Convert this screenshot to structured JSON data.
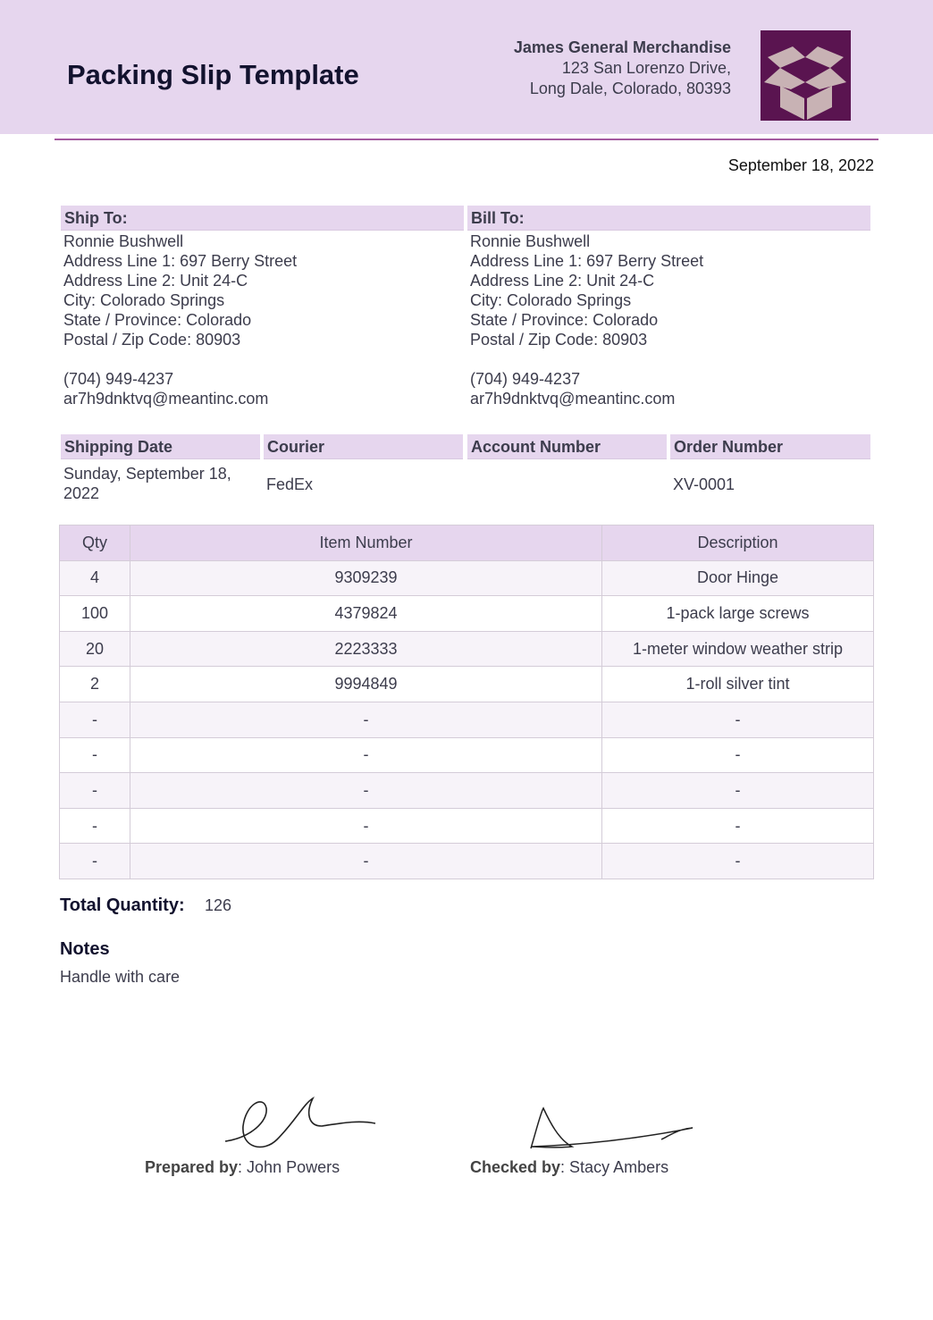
{
  "header": {
    "title": "Packing Slip Template",
    "company": "James General Merchandise",
    "address1": "123 San Lorenzo Drive,",
    "address2": "Long Dale, Colorado, 80393",
    "logo_icon": "open-box-icon",
    "colors": {
      "band": "#e6d6ee",
      "logo": "#5a1450"
    }
  },
  "date": "September 18, 2022",
  "ship_to": {
    "heading": "Ship To:",
    "lines": [
      "Ronnie Bushwell",
      "Address Line 1: 697 Berry Street",
      "Address Line 2: Unit 24-C",
      "City: Colorado Springs",
      "State / Province: Colorado",
      "Postal / Zip Code: 80903"
    ],
    "phone": "(704) 949-4237",
    "email": "ar7h9dnktvq@meantinc.com"
  },
  "bill_to": {
    "heading": "Bill To:",
    "lines": [
      "Ronnie Bushwell",
      "Address Line 1: 697 Berry Street",
      "Address Line 2: Unit 24-C",
      "City: Colorado Springs",
      "State / Province: Colorado",
      "Postal / Zip Code: 80903"
    ],
    "phone": "(704) 949-4237",
    "email": "ar7h9dnktvq@meantinc.com"
  },
  "shipping": {
    "headers": [
      "Shipping Date",
      "Courier",
      "Account Number",
      "Order Number"
    ],
    "values": [
      "Sunday, September 18, 2022",
      "FedEx",
      "",
      "XV-0001"
    ]
  },
  "items": {
    "headers": [
      "Qty",
      "Item Number",
      "Description"
    ],
    "rows": [
      [
        "4",
        "9309239",
        "Door Hinge"
      ],
      [
        "100",
        "4379824",
        "1-pack large screws"
      ],
      [
        "20",
        "2223333",
        "1-meter window weather strip"
      ],
      [
        "2",
        "9994849",
        "1-roll silver tint"
      ],
      [
        "-",
        "-",
        "-"
      ],
      [
        "-",
        "-",
        "-"
      ],
      [
        "-",
        "-",
        "-"
      ],
      [
        "-",
        "-",
        "-"
      ],
      [
        "-",
        "-",
        "-"
      ]
    ]
  },
  "total": {
    "label": "Total Quantity:",
    "value": "126"
  },
  "notes": {
    "label": "Notes",
    "text": "Handle with care"
  },
  "signatures": {
    "prepared_label": "Prepared by",
    "prepared_name": ": John Powers",
    "checked_label": "Checked by",
    "checked_name": ": Stacy Ambers"
  }
}
